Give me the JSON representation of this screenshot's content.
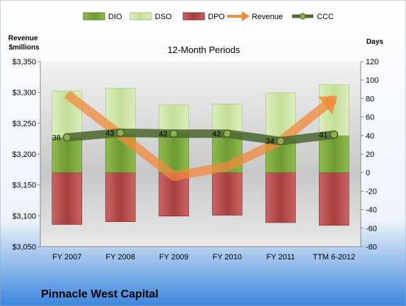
{
  "chart_data": {
    "type": "bar",
    "title": "12-Month Periods",
    "company": "Pinnacle West Capital",
    "y_left_label": "Revenue\n$millions",
    "y_right_label": "Days",
    "y_left_lim": [
      3050,
      3350
    ],
    "y_right_lim": [
      -80,
      120
    ],
    "y_left_ticks": [
      "$3,050",
      "$3,100",
      "$3,150",
      "$3,200",
      "$3,250",
      "$3,300",
      "$3,350"
    ],
    "y_right_ticks": [
      "-80",
      "-60",
      "-40",
      "-20",
      "0",
      "20",
      "40",
      "60",
      "80",
      "100",
      "120"
    ],
    "categories": [
      "FY 2007",
      "FY 2008",
      "FY 2009",
      "FY 2010",
      "FY 2011",
      "TTM 6-2012"
    ],
    "legend": [
      "DIO",
      "DSO",
      "DPO",
      "Revenue",
      "CCC"
    ],
    "legend_placement": "top",
    "grid": false,
    "series": [
      {
        "name": "DIO",
        "axis": "right",
        "kind": "stacked-bar",
        "color": "#7aa33a",
        "values": [
          38,
          42,
          43,
          43,
          38,
          40
        ]
      },
      {
        "name": "DSO",
        "axis": "right",
        "kind": "stacked-bar",
        "color": "#cfe5a5",
        "values": [
          50,
          49,
          30,
          31,
          48,
          55
        ]
      },
      {
        "name": "DPO",
        "axis": "right",
        "kind": "negative-bar",
        "color": "#b84a4a",
        "values": [
          -56,
          -53,
          -47,
          -46,
          -54,
          -57
        ]
      },
      {
        "name": "Revenue",
        "axis": "left",
        "kind": "arrow-line",
        "color": "#f08a3c",
        "values": [
          3297,
          3231,
          3164,
          3180,
          3221,
          3290
        ]
      },
      {
        "name": "CCC",
        "axis": "right",
        "kind": "line",
        "color": "#4e6a32",
        "values": [
          38,
          43,
          42,
          42,
          34,
          41
        ]
      }
    ]
  }
}
